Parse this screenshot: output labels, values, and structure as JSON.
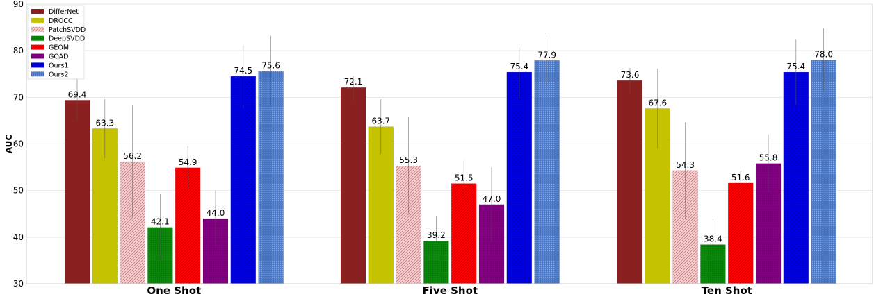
{
  "chart_data": {
    "type": "bar",
    "ylabel": "AUC",
    "ylim": [
      30,
      90
    ],
    "yticks": [
      30,
      40,
      50,
      60,
      70,
      80,
      90
    ],
    "grid": true,
    "legend_position": "top-left",
    "categories": [
      "One  Shot",
      "Five  Shot",
      "Ten  Shot"
    ],
    "series": [
      {
        "name": "DifferNet",
        "color": "#8b2020",
        "pattern": "solid",
        "values": [
          69.4,
          72.1,
          73.6
        ],
        "err_low": [
          65.0,
          69.3,
          70.8
        ],
        "err_high": [
          74.0,
          74.6,
          76.3
        ]
      },
      {
        "name": "DROCC",
        "color": "#c5c200",
        "pattern": "solid",
        "values": [
          63.3,
          63.7,
          67.6
        ],
        "err_low": [
          57.0,
          57.8,
          59.0
        ],
        "err_high": [
          69.7,
          69.7,
          76.2
        ]
      },
      {
        "name": "PatchSVDD",
        "color": "#f2bcbc",
        "pattern": "diag-pink",
        "values": [
          56.2,
          55.3,
          54.3
        ],
        "err_low": [
          44.2,
          44.8,
          44.0
        ],
        "err_high": [
          68.2,
          65.9,
          64.6
        ]
      },
      {
        "name": "DeepSVDD",
        "color": "#0a860a",
        "pattern": "dots-dark",
        "values": [
          42.1,
          39.2,
          38.4
        ],
        "err_low": [
          35.0,
          34.0,
          33.0
        ],
        "err_high": [
          49.2,
          44.4,
          44.0
        ]
      },
      {
        "name": "GEOM",
        "color": "#ff0000",
        "pattern": "diag-red",
        "values": [
          54.9,
          51.5,
          51.6
        ],
        "err_low": [
          50.3,
          46.6,
          49.0
        ],
        "err_high": [
          59.5,
          56.4,
          54.2
        ]
      },
      {
        "name": "GOAD",
        "color": "#800080",
        "pattern": "dots-dark",
        "values": [
          44.0,
          47.0,
          55.8
        ],
        "err_low": [
          38.0,
          39.0,
          49.6
        ],
        "err_high": [
          50.0,
          55.0,
          62.0
        ]
      },
      {
        "name": "Ours1",
        "color": "#0000e0",
        "pattern": "dots-dark",
        "values": [
          74.5,
          75.4,
          75.4
        ],
        "err_low": [
          67.7,
          69.8,
          68.4
        ],
        "err_high": [
          81.3,
          80.7,
          82.5
        ]
      },
      {
        "name": "Ours2",
        "color": "#4a78c8",
        "pattern": "dots-light",
        "values": [
          75.6,
          77.9,
          78.0
        ],
        "err_low": [
          68.0,
          72.5,
          71.3
        ],
        "err_high": [
          83.2,
          83.3,
          84.8
        ]
      }
    ]
  }
}
